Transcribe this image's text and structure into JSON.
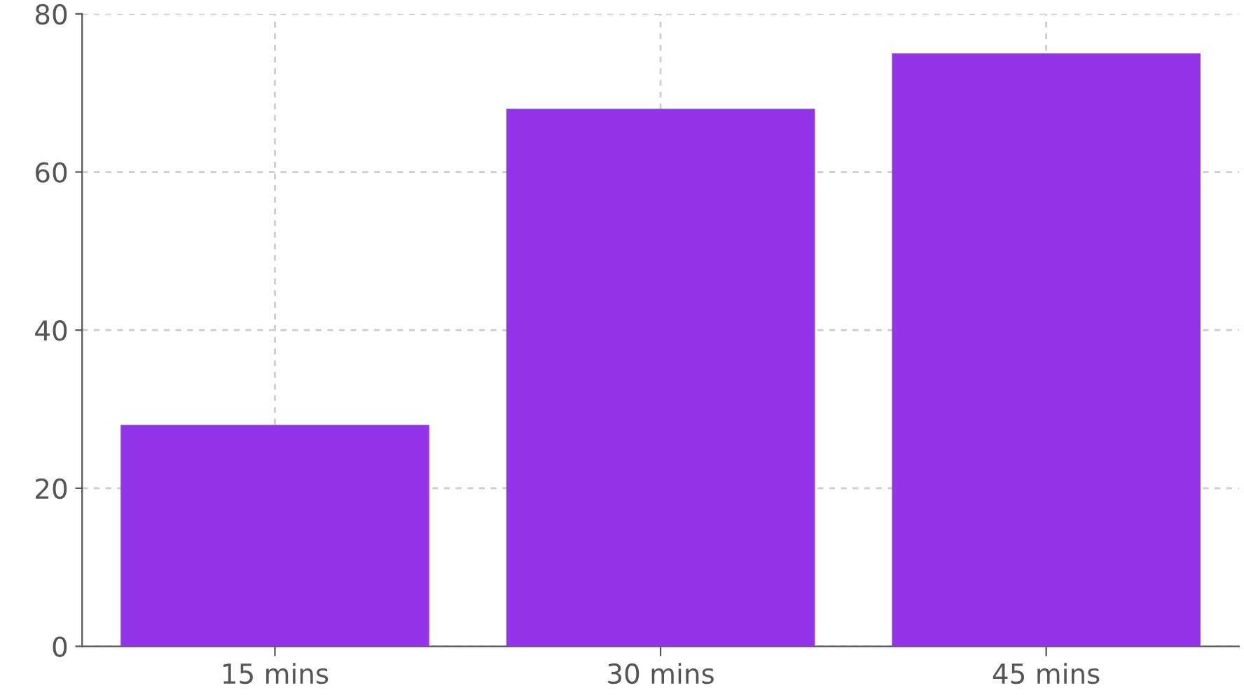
{
  "chart_data": {
    "type": "bar",
    "categories": [
      "15 mins",
      "30 mins",
      "45 mins"
    ],
    "values": [
      28,
      68,
      75
    ],
    "color": "#9333ea",
    "ylim": [
      0,
      80
    ],
    "yticks": [
      0,
      20,
      40,
      60,
      80
    ],
    "grid": true,
    "legend": false
  }
}
